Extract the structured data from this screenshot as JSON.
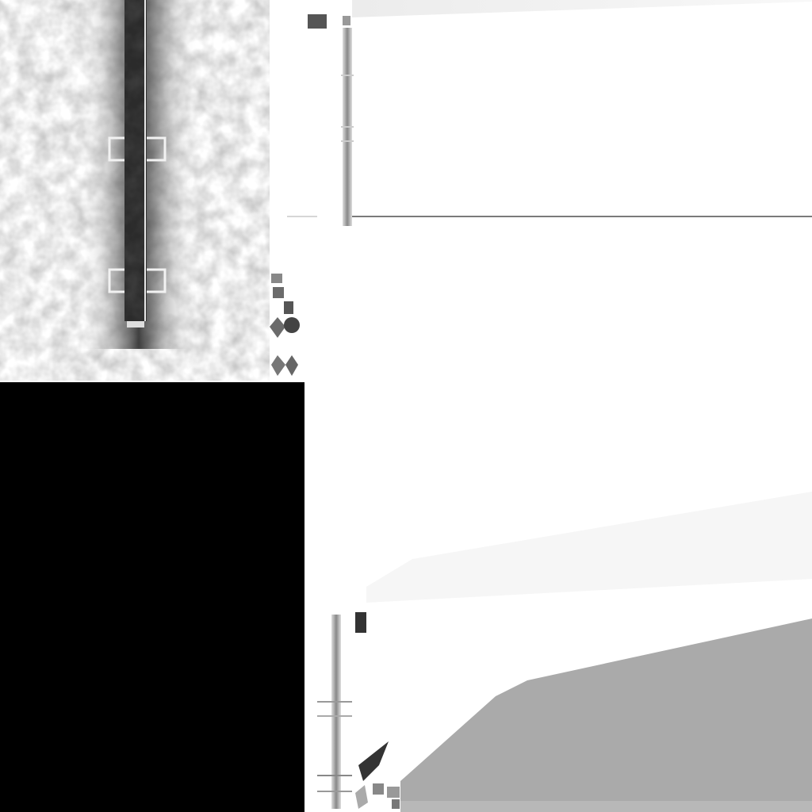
{
  "image": {
    "kind": "texture-atlas",
    "palette": {
      "background": "#ffffff",
      "black_block": "#000000",
      "mid_gray": "#aaaaaa",
      "dark_gray": "#333333",
      "light_gray": "#e6e6e6",
      "faint_gray": "#f4f4f4",
      "line_gray": "#7a7a7a"
    }
  }
}
